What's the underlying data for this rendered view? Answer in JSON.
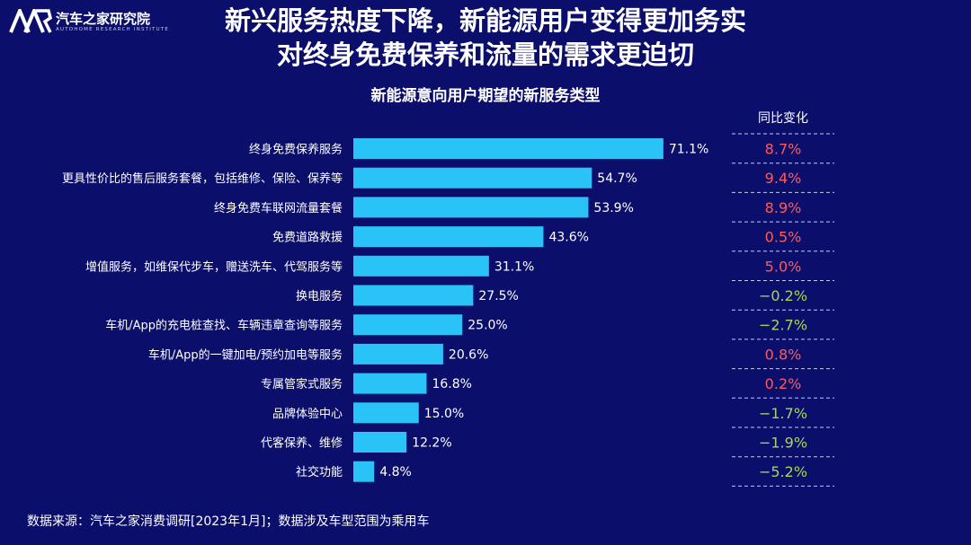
{
  "logo": {
    "mark": "AR",
    "cn": "汽车之家研究院",
    "en": "AUTOHOME RESEARCH INSTITUTE"
  },
  "title": {
    "line1": "新兴服务热度下降，新能源用户变得更加务实",
    "line2": "对终身免费保养和流量的需求更迫切"
  },
  "colors": {
    "background": "#0b0f6b",
    "bar": "#29c3f7",
    "positive": "#ff5a5a",
    "negative": "#a4d65e"
  },
  "chart_data": {
    "type": "bar",
    "orientation": "horizontal",
    "title": "新能源意向用户期望的新服务类型",
    "categories": [
      "终身免费保养服务",
      "更具性价比的售后服务套餐，包括维修、保险、保养等",
      "终身免费车联网流量套餐",
      "免费道路救援",
      "增值服务，如维保代步车，赠送洗车、代驾服务等",
      "换电服务",
      "车机/App的充电桩查找、车辆违章查询等服务",
      "车机/App的一键加电/预约加电等服务",
      "专属管家式服务",
      "品牌体验中心",
      "代客保养、维修",
      "社交功能"
    ],
    "values": [
      71.1,
      54.7,
      53.9,
      43.6,
      31.1,
      27.5,
      25.0,
      20.6,
      16.8,
      15.0,
      12.2,
      4.8
    ],
    "value_labels": [
      "71.1%",
      "54.7%",
      "53.9%",
      "43.6%",
      "31.1%",
      "27.5%",
      "25.0%",
      "20.6%",
      "16.8%",
      "15.0%",
      "12.2%",
      "4.8%"
    ],
    "xlim": [
      0,
      100
    ],
    "yoy_header": "同比变化",
    "yoy_values": [
      8.7,
      9.4,
      8.9,
      0.5,
      5.0,
      -0.2,
      -2.7,
      0.8,
      0.2,
      -1.7,
      -1.9,
      -5.2
    ],
    "yoy_labels": [
      "8.7%",
      "9.4%",
      "8.9%",
      "0.5%",
      "5.0%",
      "−0.2%",
      "−2.7%",
      "0.8%",
      "0.2%",
      "−1.7%",
      "−1.9%",
      "−5.2%"
    ]
  },
  "source": "数据来源：汽车之家消费调研[2023年1月]；数据涉及车型范围为乘用车"
}
